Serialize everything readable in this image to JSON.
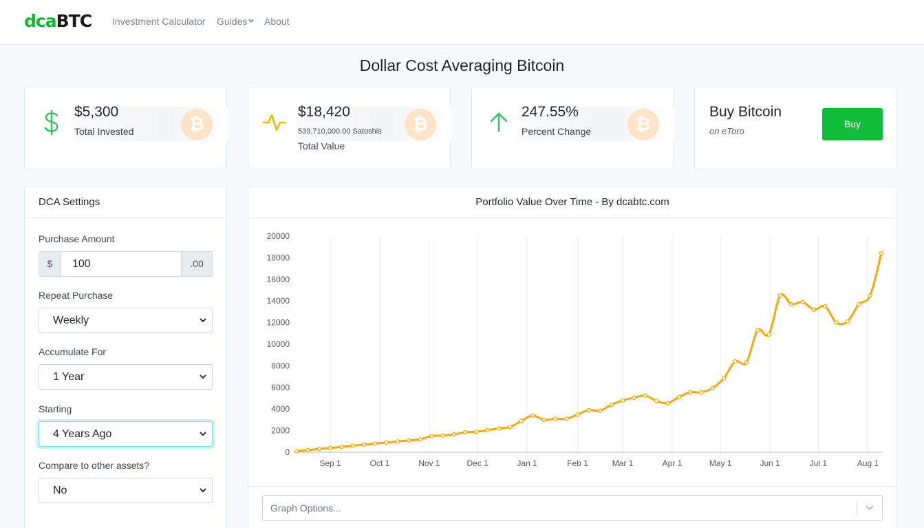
{
  "nav": {
    "logo_green": "dca",
    "logo_dark": "BTC",
    "links": [
      "Investment Calculator",
      "Guides",
      "About"
    ]
  },
  "page_title": "Dollar Cost Averaging Bitcoin",
  "stats": {
    "invested": {
      "value": "$5,300",
      "label": "Total Invested"
    },
    "total": {
      "value": "$18,420",
      "satoshis": "539,710,000.00 Satoshis",
      "label": "Total Value"
    },
    "change": {
      "value": "247.55%",
      "label": "Percent Change"
    }
  },
  "buy": {
    "title": "Buy Bitcoin",
    "subtitle": "on eToro",
    "button": "Buy"
  },
  "settings": {
    "title": "DCA Settings",
    "purchase_amount_label": "Purchase Amount",
    "currency_prefix": "$",
    "purchase_amount": "100",
    "cents_suffix": ".00",
    "repeat_label": "Repeat Purchase",
    "repeat_value": "Weekly",
    "accumulate_label": "Accumulate For",
    "accumulate_value": "1 Year",
    "starting_label": "Starting",
    "starting_value": "4 Years Ago",
    "compare_label": "Compare to other assets?",
    "compare_value": "No"
  },
  "graph_options_placeholder": "Graph Options...",
  "colors": {
    "brand_green": "#10b82f",
    "buy_green": "#0fbd3a",
    "line": "#f7a70b",
    "coin": "#fde3c7"
  },
  "chart_data": {
    "type": "line",
    "title": "Portfolio Value Over Time - By dcabtc.com",
    "xlabel": "",
    "ylabel": "",
    "ylim": [
      0,
      20000
    ],
    "yticks": [
      0,
      2000,
      4000,
      6000,
      8000,
      10000,
      12000,
      14000,
      16000,
      18000,
      20000
    ],
    "xticks": [
      {
        "label": "Sep 1",
        "week": 3
      },
      {
        "label": "Oct 1",
        "week": 7.4
      },
      {
        "label": "Nov 1",
        "week": 11.8
      },
      {
        "label": "Dec 1",
        "week": 16.1
      },
      {
        "label": "Jan 1",
        "week": 20.5
      },
      {
        "label": "Feb 1",
        "week": 25
      },
      {
        "label": "Mar 1",
        "week": 29
      },
      {
        "label": "Apr 1",
        "week": 33.4
      },
      {
        "label": "May 1",
        "week": 37.7
      },
      {
        "label": "Jun 1",
        "week": 42.1
      },
      {
        "label": "Jul 1",
        "week": 46.4
      },
      {
        "label": "Aug 1",
        "week": 50.8
      }
    ],
    "series": [
      {
        "name": "Portfolio Value",
        "values": [
          100,
          200,
          300,
          400,
          500,
          600,
          700,
          800,
          900,
          1000,
          1100,
          1200,
          1500,
          1550,
          1650,
          1850,
          1900,
          2050,
          2200,
          2350,
          2900,
          3400,
          3000,
          3100,
          3100,
          3500,
          3900,
          3850,
          4400,
          4800,
          5050,
          5250,
          4750,
          4550,
          5100,
          5550,
          5550,
          5950,
          6850,
          8400,
          8300,
          11300,
          10900,
          14500,
          13700,
          13900,
          13200,
          13500,
          12000,
          12100,
          13700,
          14500,
          18400
        ]
      }
    ]
  }
}
